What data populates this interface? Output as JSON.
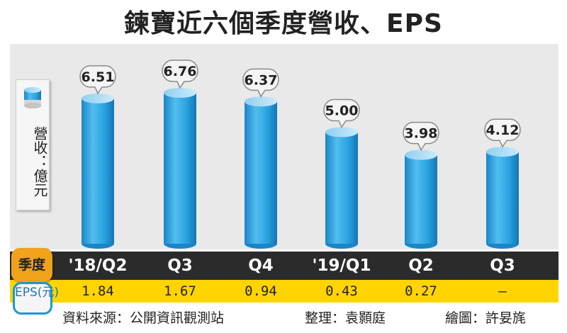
{
  "chart_data": {
    "type": "bar",
    "title": "鍊寶近六個季度營收、EPS",
    "categories": [
      "'18/Q2",
      "Q3",
      "Q4",
      "'19/Q1",
      "Q2",
      "Q3"
    ],
    "series": [
      {
        "name": "營收：億元",
        "values": [
          6.51,
          6.76,
          6.37,
          5.0,
          3.98,
          4.12
        ]
      }
    ],
    "value_labels": [
      "6.51",
      "6.76",
      "6.37",
      "5.00",
      "3.98",
      "4.12"
    ],
    "eps_label": "EPS(元)",
    "eps_values": [
      "1.84",
      "1.67",
      "0.94",
      "0.43",
      "0.27",
      "–"
    ],
    "quarter_label": "季度",
    "legend": "營收：億元",
    "ylim": [
      0,
      7.5
    ],
    "grid": false
  },
  "footer": {
    "source": "資料來源：公開資訊觀測站",
    "editor": "整理：袁顥庭",
    "illustrator": "繪圖：許妟旄"
  },
  "colors": {
    "bar": "#29a3e0",
    "bar_top": "#a9dbf5",
    "quarter_row": "#2b2b2b",
    "eps_row": "#ffd400",
    "badge": "#f0a21a"
  }
}
